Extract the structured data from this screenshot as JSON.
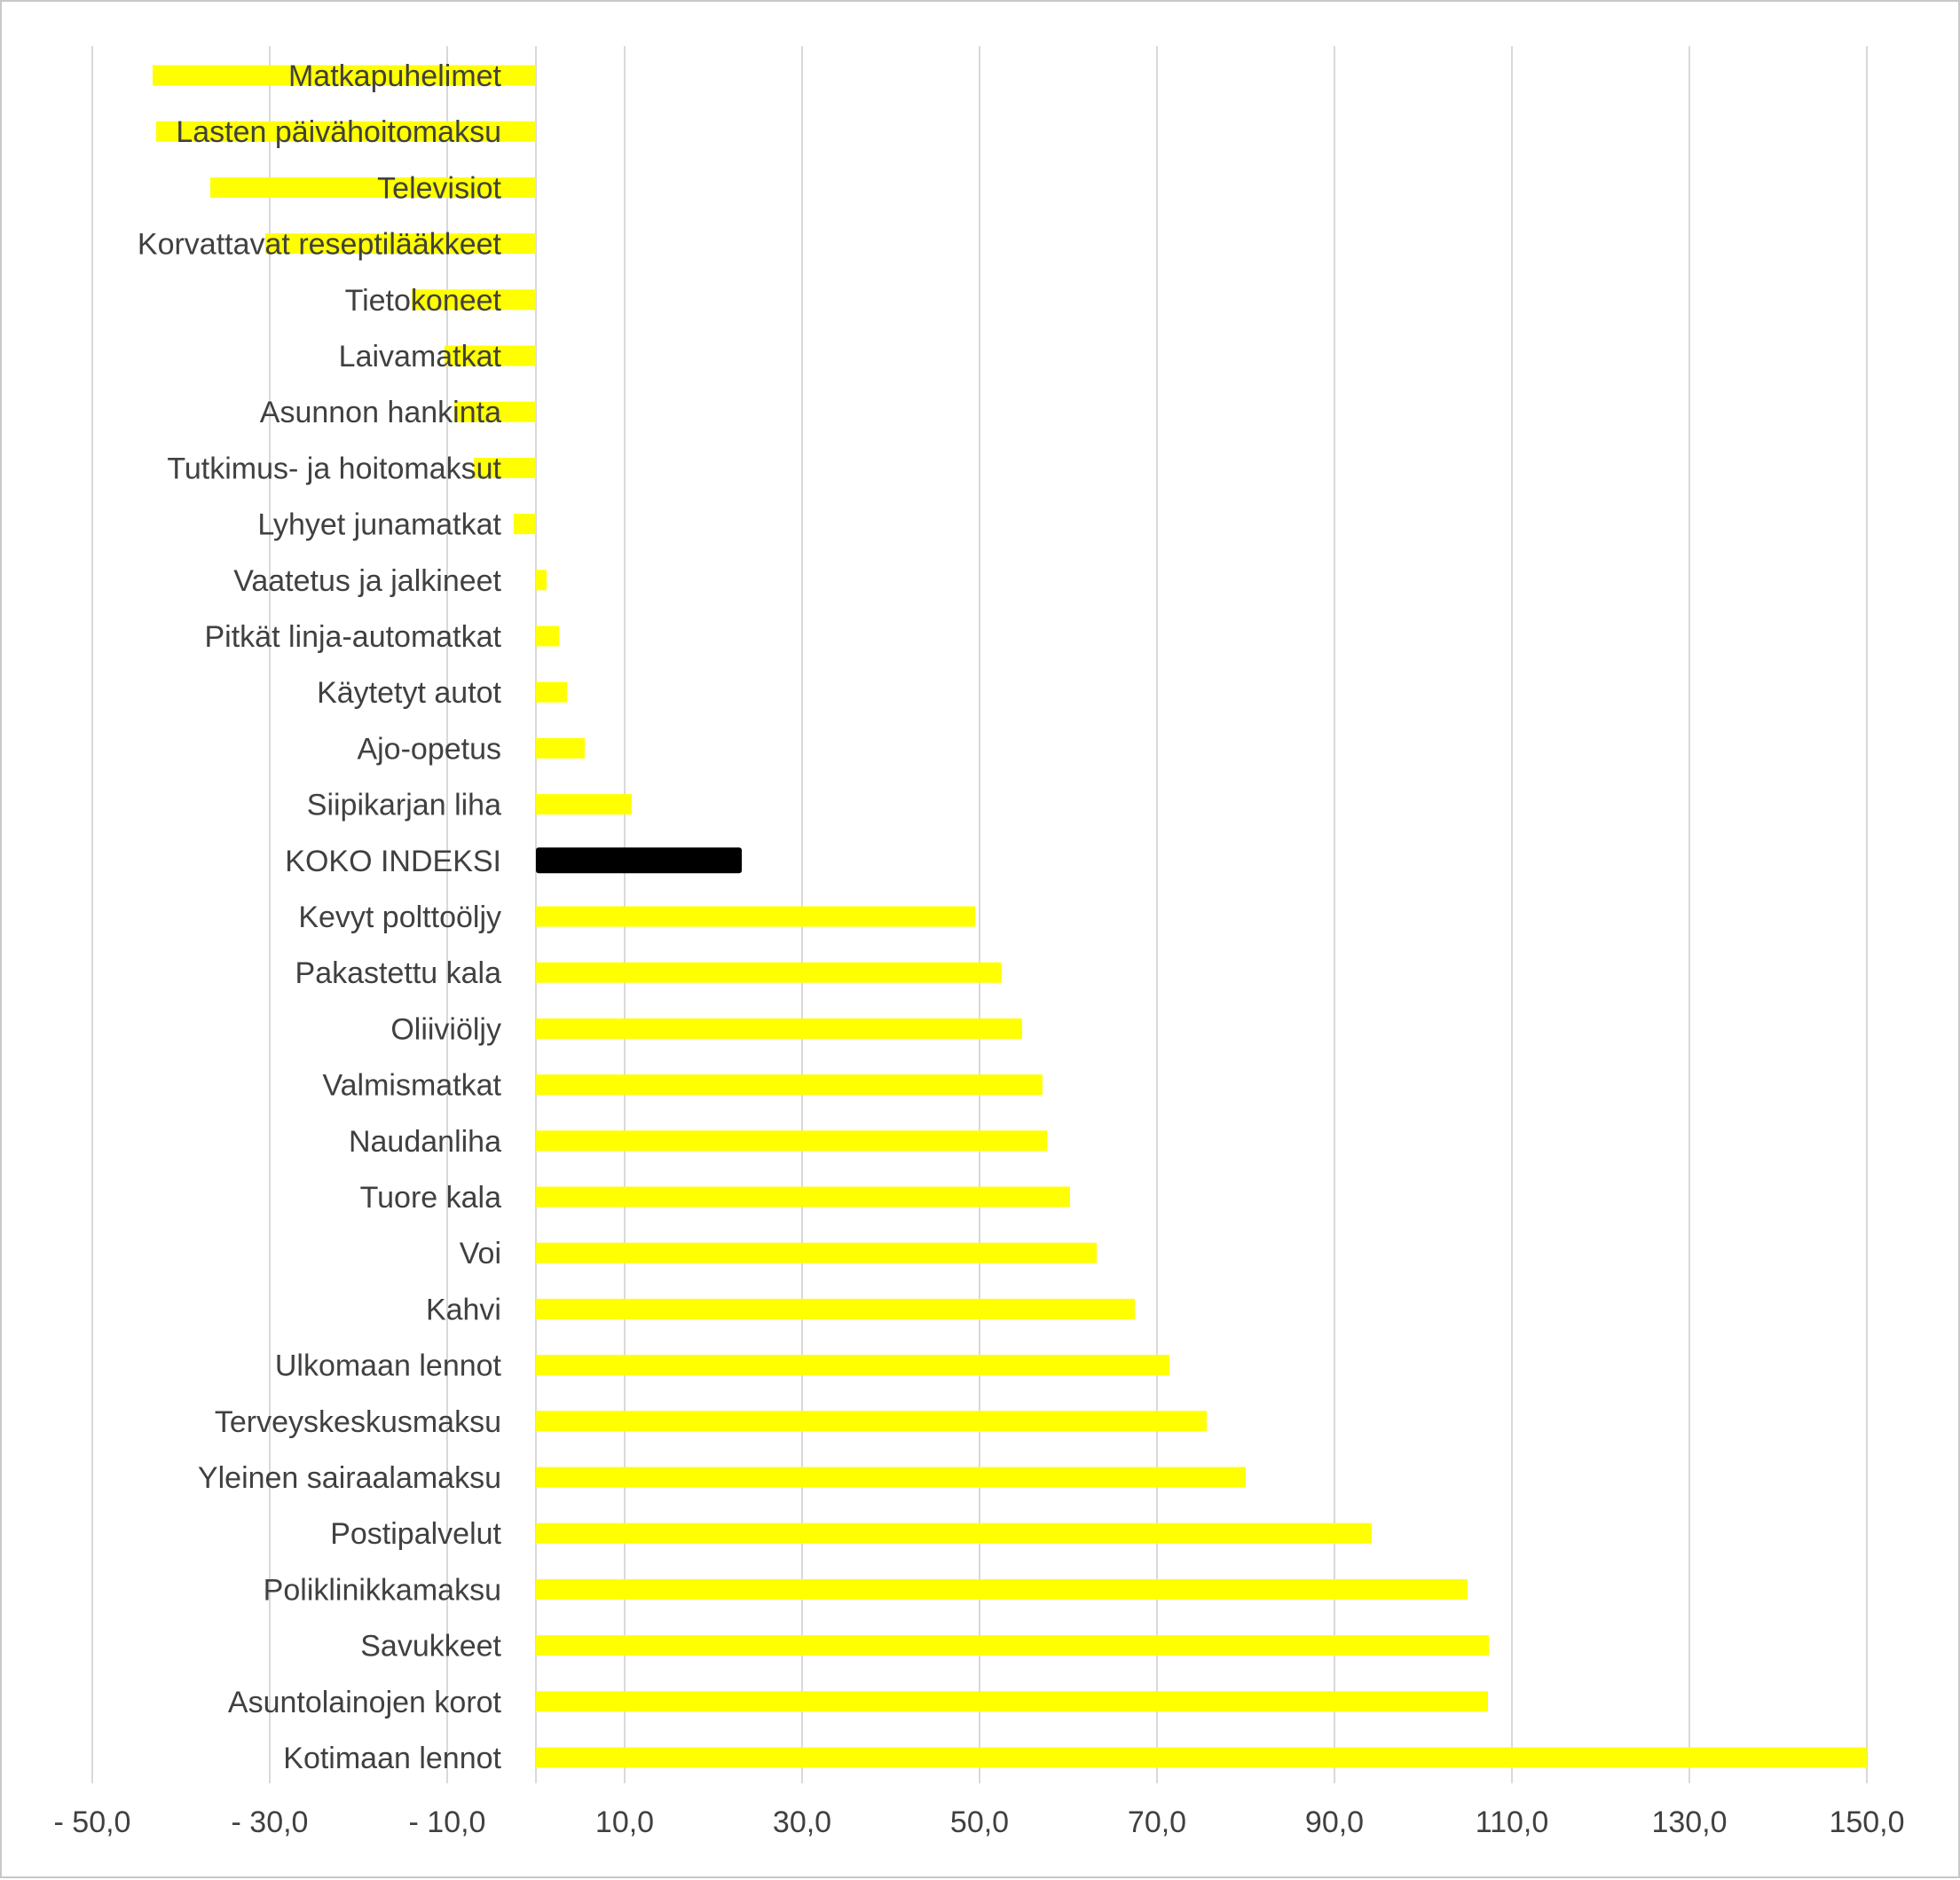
{
  "chart_data": {
    "type": "bar",
    "orientation": "horizontal",
    "title": "",
    "xlabel": "",
    "ylabel": "",
    "xlim": [
      -50,
      150
    ],
    "grid": "vertical",
    "legend": "none",
    "bar_color": "#ffff00",
    "highlight_color": "#000000",
    "highlight_category": "KOKO INDEKSI",
    "x_tick_labels": [
      "- 50,0",
      "- 30,0",
      "- 10,0",
      "10,0",
      "30,0",
      "50,0",
      "70,0",
      "90,0",
      "110,0",
      "130,0",
      "150,0"
    ],
    "x_tick_values": [
      -50,
      -30,
      -10,
      10,
      30,
      50,
      70,
      90,
      110,
      130,
      150
    ],
    "categories": [
      "Matkapuhelimet",
      "Lasten päivähoitomaksu",
      "Televisiot",
      "Korvattavat reseptilääkkeet",
      "Tietokoneet",
      "Laivamatkat",
      "Asunnon hankinta",
      "Tutkimus- ja hoitomaksut",
      "Lyhyet junamatkat",
      "Vaatetus ja jalkineet",
      "Pitkät linja-automatkat",
      "Käytetyt autot",
      "Ajo-opetus",
      "Siipikarjan liha",
      "KOKO INDEKSI",
      "Kevyt polttoöljy",
      "Pakastettu kala",
      "Oliiviöljy",
      "Valmismatkat",
      "Naudanliha",
      "Tuore kala",
      "Voi",
      "Kahvi",
      "Ulkomaan lennot",
      "Terveyskeskusmaksu",
      "Yleinen sairaalamaksu",
      "Postipalvelut",
      "Poliklinikkamaksu",
      "Savukkeet",
      "Asuntolainojen korot",
      "Kotimaan lennot"
    ],
    "values": [
      -43.2,
      -42.8,
      -36.7,
      -30.5,
      -14.0,
      -10.3,
      -9.2,
      -7.0,
      -2.5,
      1.2,
      2.6,
      3.5,
      5.5,
      10.8,
      23.2,
      49.5,
      52.5,
      54.8,
      57.1,
      57.6,
      60.2,
      63.2,
      67.5,
      71.4,
      75.6,
      80.0,
      94.2,
      105.0,
      107.4,
      107.3,
      150.0
    ]
  }
}
